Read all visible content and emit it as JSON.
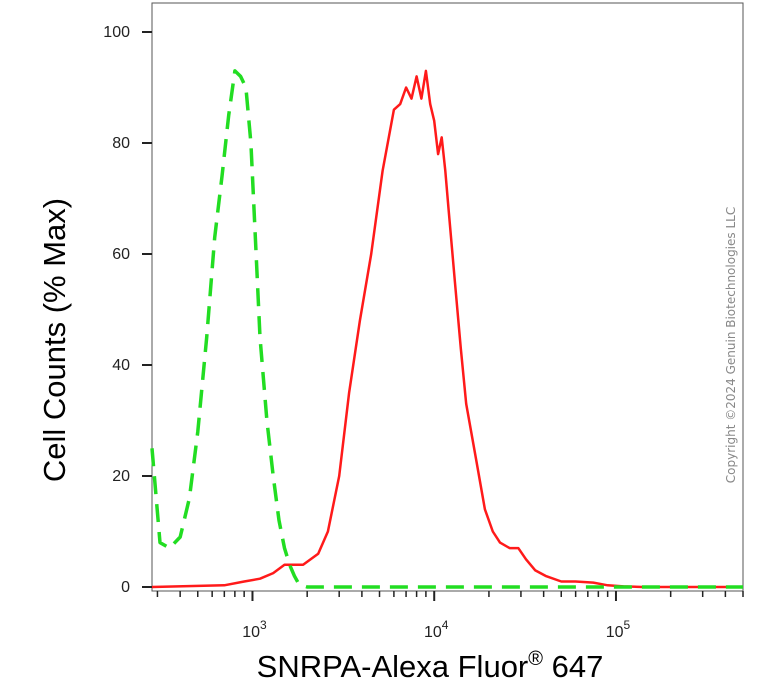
{
  "chart_data": {
    "type": "line",
    "xlabel": "SNRPA-Alexa Fluor",
    "xlabel_reg": "®",
    "xlabel_suffix": " 647",
    "ylabel": "Cell Counts (% Max)",
    "x_scale": "log",
    "xlim": [
      280,
      500000
    ],
    "ylim": [
      0,
      100
    ],
    "y_ticks": [
      0,
      20,
      40,
      60,
      80,
      100
    ],
    "x_ticks": [
      1000,
      10000,
      100000
    ],
    "x_tick_labels": [
      {
        "base": "10",
        "exp": "3"
      },
      {
        "base": "10",
        "exp": "4"
      },
      {
        "base": "10",
        "exp": "5"
      }
    ],
    "grid": false,
    "series": [
      {
        "color": "#ff1a1a",
        "style": "solid",
        "x": [
          280,
          700,
          900,
          1100,
          1300,
          1500,
          1900,
          2300,
          2600,
          3000,
          3400,
          3900,
          4500,
          5200,
          6000,
          6500,
          7000,
          7500,
          8000,
          8500,
          9000,
          9500,
          10000,
          10500,
          11000,
          11500,
          12000,
          13000,
          14000,
          15000,
          17000,
          19000,
          21000,
          23000,
          26000,
          29000,
          32000,
          36000,
          41000,
          50000,
          60000,
          75000,
          90000,
          110000,
          140000,
          200000,
          500000
        ],
        "y": [
          0,
          0.3,
          1,
          1.5,
          2.5,
          4,
          4,
          6,
          10,
          20,
          35,
          48,
          60,
          75,
          86,
          87,
          90,
          88,
          92,
          88,
          93,
          87,
          84,
          78,
          81,
          75,
          68,
          55,
          43,
          33,
          23,
          14,
          10,
          8,
          7,
          7,
          5,
          3,
          2,
          1,
          1,
          0.8,
          0.3,
          0.1,
          0,
          0,
          0
        ]
      },
      {
        "color": "#22dd22",
        "style": "dashed",
        "x": [
          280,
          310,
          350,
          400,
          450,
          500,
          560,
          620,
          680,
          740,
          800,
          860,
          920,
          980,
          1040,
          1100,
          1200,
          1300,
          1400,
          1500,
          1600,
          1700,
          1800,
          2000,
          2500,
          5000,
          100000,
          500000
        ],
        "y": [
          25,
          8,
          7,
          9,
          16,
          28,
          45,
          63,
          74,
          85,
          93,
          92,
          90,
          80,
          62,
          45,
          30,
          20,
          12,
          7,
          4,
          2,
          0.5,
          0,
          0,
          0,
          0,
          0
        ]
      }
    ]
  },
  "watermark": "Copyright ©2024 Genuin Biotechnologies LLC"
}
